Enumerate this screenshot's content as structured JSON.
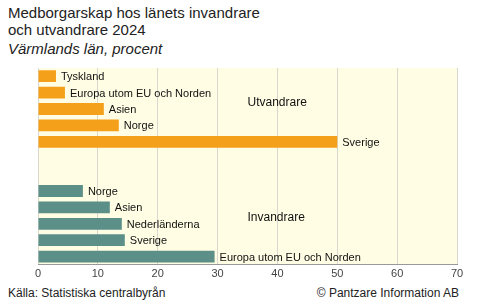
{
  "chart_data": {
    "type": "bar",
    "orientation": "horizontal",
    "title": "Medborgarskap hos länets invandrare och utvandrare 2024",
    "subtitle": "Värmlands län, procent",
    "source": "Källa: Statistiska centralbyrån",
    "credit": "© Pantzare Information AB",
    "categories": [
      "Tyskland",
      "Europa utom EU och Norden",
      "Asien",
      "Norge",
      "Sverige",
      null,
      null,
      "Norge",
      "Asien",
      "Nederländerna",
      "Sverige",
      "Europa utom EU och Norden"
    ],
    "series": [
      {
        "name": "Utvandrare",
        "color": "#f5a01a",
        "values": [
          3,
          4.5,
          11,
          13.5,
          50,
          null,
          null,
          null,
          null,
          null,
          null,
          null
        ]
      },
      {
        "name": "Invandrare",
        "color": "#5b8f88",
        "values": [
          null,
          null,
          null,
          null,
          null,
          null,
          null,
          7.5,
          12,
          14,
          14.5,
          29.5
        ]
      }
    ],
    "xlim": [
      0,
      70
    ],
    "xticks": [
      0,
      10,
      20,
      30,
      40,
      50,
      60,
      70
    ],
    "grid": true,
    "tick_labels": "x"
  }
}
